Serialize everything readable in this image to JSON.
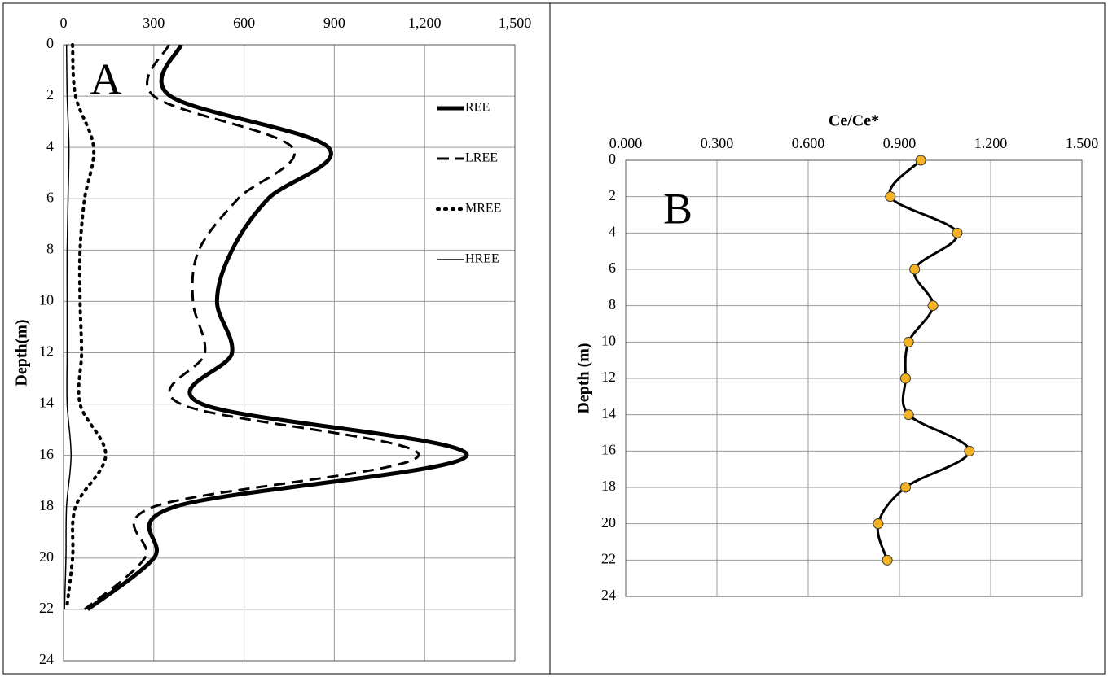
{
  "chart_data": [
    {
      "type": "line",
      "annotation": "A",
      "ylabel": "Depth(m)",
      "xlim": [
        0,
        1500
      ],
      "xticks": [
        0,
        300,
        600,
        900,
        {
          "value": 1200,
          "label": "1,200"
        },
        {
          "value": 1500,
          "label": "1,500"
        }
      ],
      "ylim": [
        0,
        24
      ],
      "yticks": [
        0,
        2,
        4,
        6,
        8,
        10,
        12,
        14,
        16,
        18,
        20,
        22,
        24
      ],
      "grid": true,
      "legend": "top-right",
      "y": [
        0,
        2,
        4,
        6,
        8,
        10,
        12,
        14,
        16,
        18,
        20,
        22
      ],
      "series": [
        {
          "name": "REE",
          "color": "#000000",
          "dash": "solid",
          "width": 5,
          "values": [
            390,
            355,
            880,
            680,
            560,
            510,
            560,
            460,
            1340,
            370,
            300,
            80
          ]
        },
        {
          "name": "LREE",
          "color": "#000000",
          "dash": "dashed",
          "width": 3,
          "values": [
            350,
            300,
            760,
            580,
            450,
            430,
            470,
            390,
            1180,
            300,
            270,
            70
          ]
        },
        {
          "name": "MREE",
          "color": "#000000",
          "dash": "dotted",
          "width": 4,
          "values": [
            30,
            40,
            100,
            70,
            55,
            55,
            60,
            55,
            140,
            40,
            30,
            10
          ]
        },
        {
          "name": "HREE",
          "color": "#000000",
          "dash": "solid",
          "width": 1.5,
          "values": [
            10,
            12,
            18,
            15,
            12,
            12,
            12,
            12,
            25,
            10,
            8,
            3
          ]
        }
      ]
    },
    {
      "type": "line",
      "annotation": "B",
      "title": "Ce/Ce*",
      "ylabel": "Depth (m)",
      "xlim": [
        0,
        1.5
      ],
      "xticks": [
        {
          "value": 0,
          "label": "0.000"
        },
        {
          "value": 0.3,
          "label": "0.300"
        },
        {
          "value": 0.6,
          "label": "0.600"
        },
        {
          "value": 0.9,
          "label": "0.900"
        },
        {
          "value": 1.2,
          "label": "1.200"
        },
        {
          "value": 1.5,
          "label": "1.500"
        }
      ],
      "ylim": [
        0,
        24
      ],
      "yticks": [
        0,
        2,
        4,
        6,
        8,
        10,
        12,
        14,
        16,
        18,
        20,
        22,
        24
      ],
      "grid": true,
      "markers": true,
      "marker_color": "#f5b324",
      "y": [
        0,
        2,
        4,
        6,
        8,
        10,
        12,
        14,
        16,
        18,
        20,
        22
      ],
      "series": [
        {
          "color": "#000000",
          "dash": "solid",
          "width": 3,
          "values": [
            0.97,
            0.87,
            1.09,
            0.95,
            1.01,
            0.93,
            0.92,
            0.93,
            1.13,
            0.92,
            0.83,
            0.86
          ]
        }
      ]
    }
  ]
}
